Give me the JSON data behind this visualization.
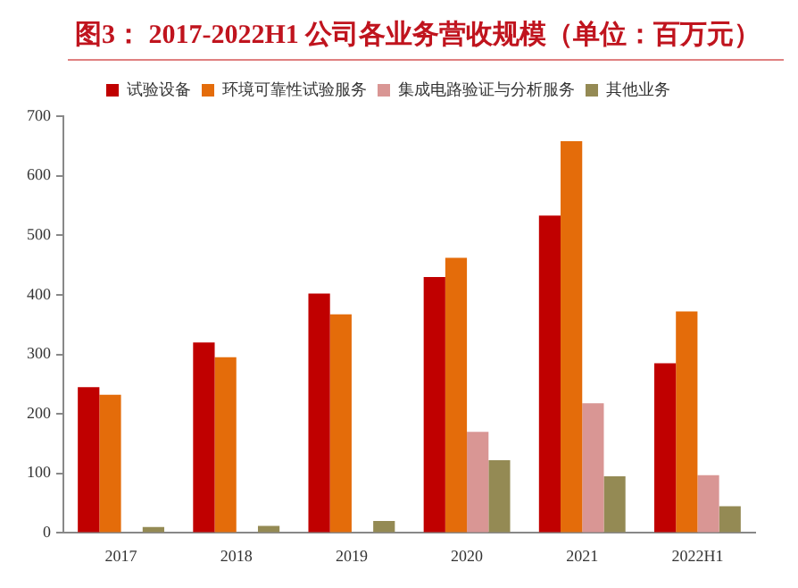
{
  "chart_data": {
    "type": "bar",
    "title": "图3：  2017-2022H1 公司各业务营收规模（单位：百万元）",
    "categories": [
      "2017",
      "2018",
      "2019",
      "2020",
      "2021",
      "2022H1"
    ],
    "series": [
      {
        "name": "试验设备",
        "color": "#c00000",
        "values": [
          245,
          320,
          402,
          430,
          533,
          285
        ]
      },
      {
        "name": "环境可靠性试验服务",
        "color": "#e46c0a",
        "values": [
          232,
          295,
          367,
          462,
          658,
          372
        ]
      },
      {
        "name": "集成电路验证与分析服务",
        "color": "#d99694",
        "values": [
          null,
          null,
          null,
          170,
          218,
          97
        ]
      },
      {
        "name": "其他业务",
        "color": "#948a54",
        "values": [
          10,
          12,
          20,
          122,
          95,
          45
        ]
      }
    ],
    "ylim": [
      0,
      700
    ],
    "yticks": [
      0,
      100,
      200,
      300,
      400,
      500,
      600,
      700
    ],
    "grid": false,
    "legend": "top"
  }
}
